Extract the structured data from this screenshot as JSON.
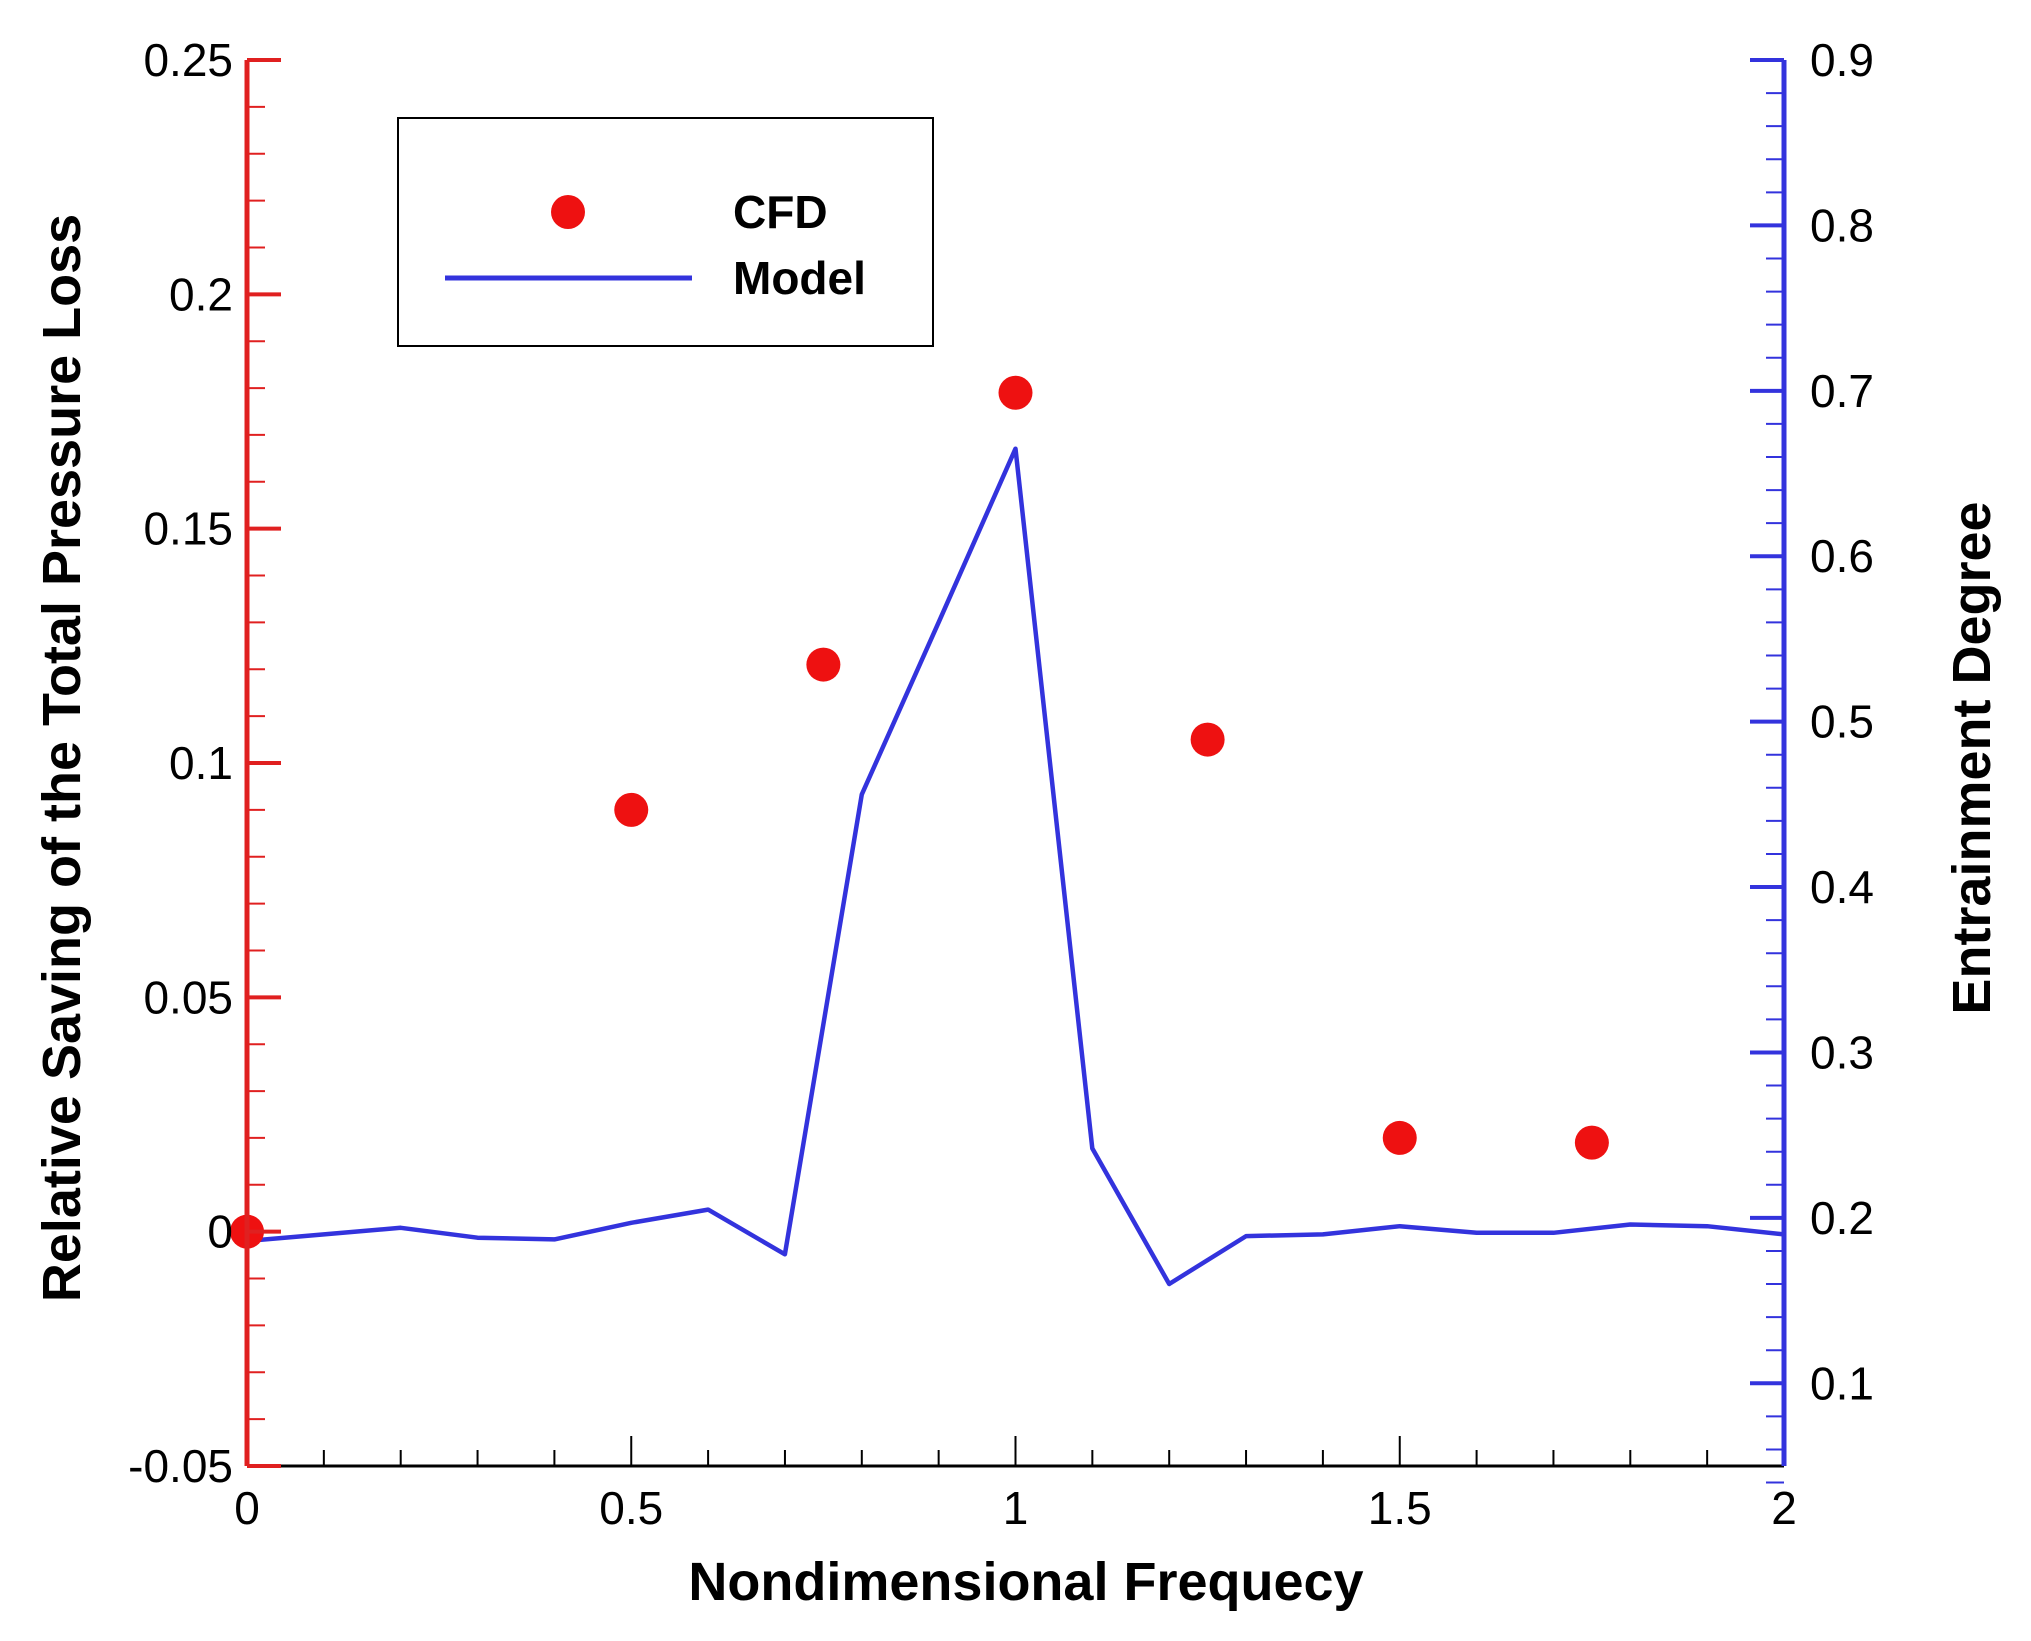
{
  "chart_data": {
    "type": "scatter+line",
    "xlabel": "Nondimensional Frequecy",
    "ylabel": "Relative Saving of the Total Pressure Loss",
    "y2label": "Entrainment Degree",
    "xlim": [
      0,
      2
    ],
    "ylim": [
      -0.05,
      0.25
    ],
    "y2lim": [
      0.05,
      0.9
    ],
    "x_ticks": [
      "0",
      "0.5",
      "1",
      "1.5",
      "2"
    ],
    "y_ticks": [
      "-0.05",
      "0",
      "0.05",
      "0.1",
      "0.15",
      "0.2",
      "0.25"
    ],
    "y2_ticks": [
      "0.1",
      "0.2",
      "0.3",
      "0.4",
      "0.5",
      "0.6",
      "0.7",
      "0.8",
      "0.9"
    ],
    "colors": {
      "left_axis": "#e02020",
      "right_axis": "#3333dd",
      "cfd": "#ee1111",
      "model": "#3333dd"
    },
    "legend": {
      "position": "top-left",
      "entries": [
        "CFD",
        "Model"
      ]
    },
    "series": [
      {
        "name": "CFD",
        "kind": "scatter",
        "axis": "left",
        "x": [
          0,
          0.5,
          0.75,
          1.0,
          1.25,
          1.5,
          1.75
        ],
        "y": [
          0.0,
          0.09,
          0.121,
          0.179,
          0.105,
          0.02,
          0.019
        ]
      },
      {
        "name": "Model",
        "kind": "line",
        "axis": "right",
        "x": [
          0,
          0.1,
          0.2,
          0.3,
          0.4,
          0.5,
          0.6,
          0.7,
          0.8,
          0.9,
          1.0,
          1.1,
          1.2,
          1.3,
          1.4,
          1.5,
          1.6,
          1.7,
          1.8,
          1.9,
          2.0
        ],
        "y": [
          0.186,
          0.19,
          0.194,
          0.188,
          0.187,
          0.197,
          0.205,
          0.178,
          0.456,
          0.56,
          0.665,
          0.242,
          0.16,
          0.189,
          0.19,
          0.195,
          0.191,
          0.191,
          0.196,
          0.195,
          0.19
        ]
      }
    ]
  }
}
